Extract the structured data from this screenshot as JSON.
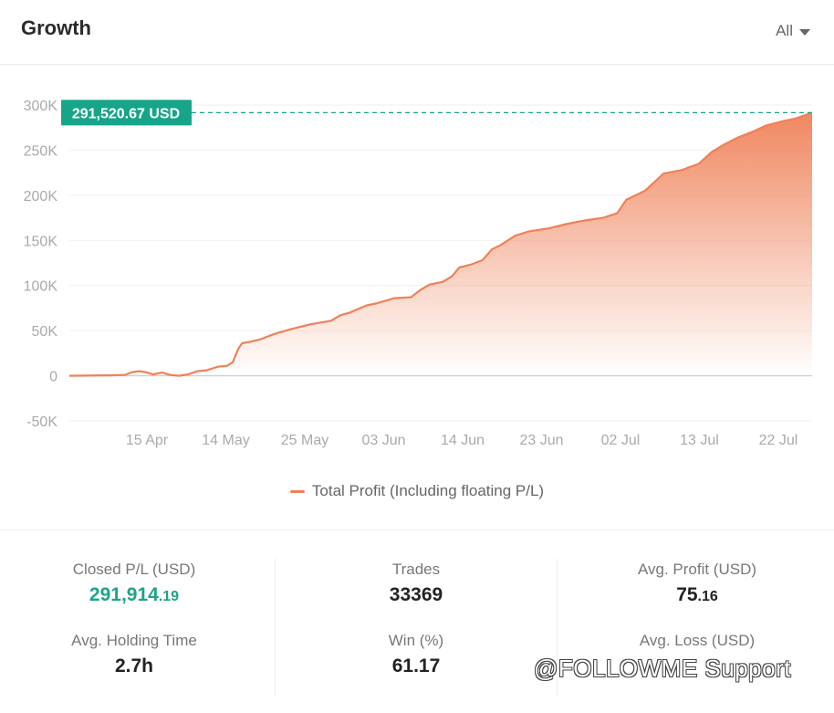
{
  "header": {
    "title": "Growth",
    "filter_label": "All"
  },
  "chart_data": {
    "type": "area",
    "series": [
      {
        "name": "Total Profit (Including floating P/L)",
        "color": "#ef8158",
        "points": [
          [
            0,
            0
          ],
          [
            20,
            200
          ],
          [
            45,
            500
          ],
          [
            60,
            1000
          ],
          [
            68,
            4000
          ],
          [
            75,
            5000
          ],
          [
            82,
            4000
          ],
          [
            90,
            1500
          ],
          [
            100,
            3500
          ],
          [
            108,
            1000
          ],
          [
            118,
            0
          ],
          [
            128,
            1500
          ],
          [
            138,
            5000
          ],
          [
            148,
            6000
          ],
          [
            160,
            10000
          ],
          [
            170,
            11000
          ],
          [
            176,
            15000
          ],
          [
            182,
            30000
          ],
          [
            186,
            36000
          ],
          [
            194,
            37500
          ],
          [
            205,
            40000
          ],
          [
            220,
            46000
          ],
          [
            240,
            52000
          ],
          [
            260,
            57000
          ],
          [
            282,
            61000
          ],
          [
            292,
            67000
          ],
          [
            302,
            70000
          ],
          [
            320,
            78000
          ],
          [
            330,
            80000
          ],
          [
            350,
            86000
          ],
          [
            368,
            87000
          ],
          [
            378,
            95000
          ],
          [
            388,
            101000
          ],
          [
            402,
            104000
          ],
          [
            412,
            110000
          ],
          [
            420,
            120000
          ],
          [
            432,
            123000
          ],
          [
            445,
            128000
          ],
          [
            455,
            140000
          ],
          [
            465,
            145000
          ],
          [
            480,
            155000
          ],
          [
            495,
            160000
          ],
          [
            515,
            163000
          ],
          [
            535,
            168000
          ],
          [
            555,
            172000
          ],
          [
            575,
            175000
          ],
          [
            590,
            180000
          ],
          [
            600,
            195000
          ],
          [
            610,
            200000
          ],
          [
            620,
            205000
          ],
          [
            640,
            224000
          ],
          [
            660,
            228000
          ],
          [
            678,
            235000
          ],
          [
            692,
            248000
          ],
          [
            705,
            256000
          ],
          [
            720,
            264000
          ],
          [
            735,
            270000
          ],
          [
            750,
            277000
          ],
          [
            768,
            282000
          ],
          [
            782,
            285000
          ],
          [
            800,
            291520.67
          ]
        ]
      }
    ],
    "yticks": [
      {
        "value": 300000,
        "label": "300K"
      },
      {
        "value": 250000,
        "label": "250K"
      },
      {
        "value": 200000,
        "label": "200K"
      },
      {
        "value": 150000,
        "label": "150K"
      },
      {
        "value": 100000,
        "label": "100K"
      },
      {
        "value": 50000,
        "label": "50K"
      },
      {
        "value": 0,
        "label": "0"
      },
      {
        "value": -50000,
        "label": "-50K"
      }
    ],
    "xticks": [
      "15 Apr",
      "14 May",
      "25 May",
      "03 Jun",
      "14 Jun",
      "23 Jun",
      "02 Jul",
      "13 Jul",
      "22 Jul"
    ],
    "ylim": [
      -50000,
      300000
    ],
    "current_value_label": "291,520.67 USD",
    "badge_color": "#17a589",
    "grid": true,
    "legend_position": "bottom"
  },
  "stats": {
    "closed_pl": {
      "label": "Closed P/L (USD)",
      "value_main": "291,914",
      "value_small": ".19"
    },
    "trades": {
      "label": "Trades",
      "value": "33369"
    },
    "avg_profit": {
      "label": "Avg. Profit (USD)",
      "value_main": "75",
      "value_small": ".16"
    },
    "avg_holding_time": {
      "label": "Avg. Holding Time",
      "value": "2.7h"
    },
    "win": {
      "label": "Win (%)",
      "value": "61.17"
    },
    "avg_loss": {
      "label": "Avg. Loss (USD)",
      "value_main": "",
      "value_small": ""
    }
  },
  "watermark": "@FOLLOWME Support"
}
